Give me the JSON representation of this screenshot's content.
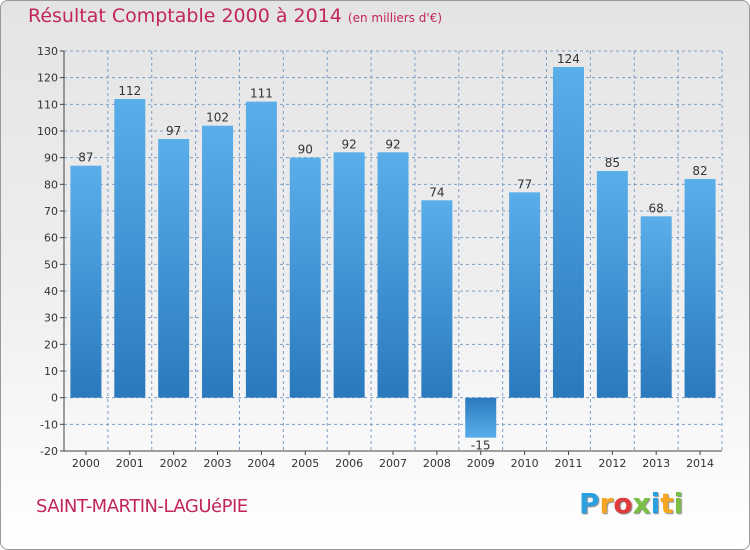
{
  "header": {
    "title": "Résultat Comptable 2000 à 2014",
    "unit": "(en milliers d'€)"
  },
  "footer": {
    "commune": "SAINT-MARTIN-LAGUéPIE",
    "logo_letters": [
      "P",
      "r",
      "o",
      "x",
      "i",
      "t",
      "i"
    ],
    "logo_colors": [
      "#2aa0e0",
      "#f5a623",
      "#e03a3a",
      "#7ac143",
      "#2aa0e0",
      "#f5a623",
      "#7ac143"
    ]
  },
  "colors": {
    "bar_light": "#5aaeea",
    "bar_dark": "#2a7bc0",
    "grid": "#7aa0c8",
    "title": "#c2245e"
  },
  "chart_data": {
    "type": "bar",
    "title": "Résultat Comptable 2000 à 2014",
    "subtitle": "(en milliers d'€)",
    "xlabel": "",
    "ylabel": "",
    "categories": [
      "2000",
      "2001",
      "2002",
      "2003",
      "2004",
      "2005",
      "2006",
      "2007",
      "2008",
      "2009",
      "2010",
      "2011",
      "2012",
      "2013",
      "2014"
    ],
    "values": [
      87,
      112,
      97,
      102,
      111,
      90,
      92,
      92,
      74,
      -15,
      77,
      124,
      85,
      68,
      82
    ],
    "ylim": [
      -20,
      130
    ],
    "yticks": [
      -20,
      -10,
      0,
      10,
      20,
      30,
      40,
      50,
      60,
      70,
      80,
      90,
      100,
      110,
      120,
      130
    ],
    "grid": true,
    "legend": "none"
  }
}
